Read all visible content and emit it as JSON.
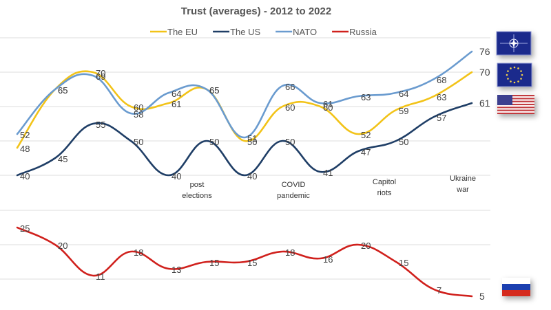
{
  "chart_data": [
    {
      "type": "line",
      "title": "Trust (averages) - 2012 to 2022",
      "xlabel": "",
      "ylabel": "",
      "ylim": [
        40,
        80
      ],
      "grid": true,
      "legend": {
        "placement": "top-center",
        "entries": [
          "The EU",
          "The US",
          "NATO",
          "Russia"
        ]
      },
      "x": [
        1,
        2,
        3,
        4,
        5,
        6,
        7,
        8,
        9,
        10,
        11,
        12,
        13
      ],
      "series": [
        {
          "name": "The EU",
          "color": "#F2C318",
          "values": [
            48,
            65,
            70,
            60,
            61,
            65,
            50,
            60,
            60,
            52,
            59,
            63,
            70
          ]
        },
        {
          "name": "The US",
          "color": "#1F3E66",
          "values": [
            40,
            45,
            55,
            50,
            40,
            50,
            40,
            50,
            41,
            47,
            50,
            57,
            61
          ]
        },
        {
          "name": "NATO",
          "color": "#6A9BCF",
          "values": [
            52,
            65,
            69,
            58,
            64,
            65,
            51,
            66,
            61,
            63,
            64,
            68,
            76
          ]
        }
      ],
      "annotations": [
        {
          "text": [
            "post",
            "elections"
          ],
          "near_x": 6
        },
        {
          "text": [
            "COVID",
            "pandemic"
          ],
          "near_x": 8
        },
        {
          "text": [
            "Capitol",
            "riots"
          ],
          "near_x": 11
        },
        {
          "text": [
            "Ukraine",
            "war"
          ],
          "near_x": 13
        }
      ],
      "end_icons": [
        "nato-flag",
        "eu-flag",
        "us-flag"
      ]
    },
    {
      "type": "line",
      "ylim": [
        0,
        30
      ],
      "grid": true,
      "x": [
        1,
        2,
        3,
        4,
        5,
        6,
        7,
        8,
        9,
        10,
        11,
        12,
        13
      ],
      "series": [
        {
          "name": "Russia",
          "color": "#D0201C",
          "values": [
            25,
            20,
            11,
            18,
            13,
            15,
            15,
            18,
            16,
            20,
            15,
            7,
            5
          ]
        }
      ],
      "end_icons": [
        "russia-flag"
      ]
    }
  ]
}
